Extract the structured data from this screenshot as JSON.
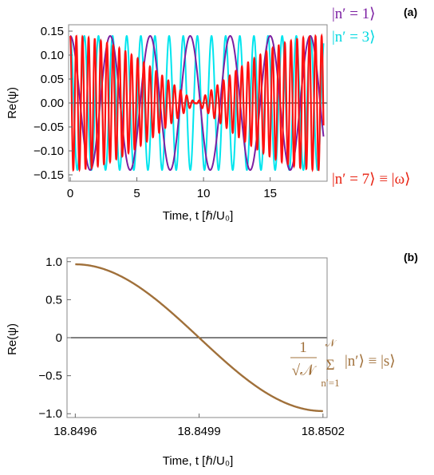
{
  "chart_data": [
    {
      "type": "line",
      "panel_label": "(a)",
      "xlabel": "Time, t [ℏ/U₀]",
      "ylabel": "Re(ψ)",
      "xlim": [
        0,
        19
      ],
      "ylim": [
        -0.15,
        0.15
      ],
      "x_ticks": [
        0,
        5,
        10,
        15
      ],
      "x_tick_labels": [
        "0",
        "5",
        "10",
        "15"
      ],
      "y_ticks": [
        0.15,
        0.1,
        0.05,
        0.0,
        -0.05,
        -0.1,
        -0.15
      ],
      "y_tick_labels": [
        "0.15",
        "0.10",
        "0.05",
        "0.00",
        "−0.05",
        "−0.10",
        "−0.15"
      ],
      "series": [
        {
          "name": "|n′ = 1⟩",
          "color": "#7b1fa2",
          "amplitude": 0.14,
          "period": 3.0,
          "decay": 0
        },
        {
          "name": "|n′ = 3⟩",
          "color": "#00e5ee",
          "amplitude": 0.14,
          "period": 1.06,
          "decay": 0
        },
        {
          "name": "|n′ = 7⟩ ≡ |ω⟩",
          "color": "#ff1010",
          "amplitude": 0.14,
          "period": 0.46,
          "envelope": "beat",
          "envelope_period": 18.85
        }
      ]
    },
    {
      "type": "line",
      "panel_label": "(b)",
      "xlabel": "Time, t [ℏ/U₀]",
      "ylabel": "Re(ψ)",
      "xlim": [
        18.84958,
        18.85021
      ],
      "ylim": [
        -1.05,
        1.05
      ],
      "x_ticks": [
        18.8496,
        18.8499,
        18.8502
      ],
      "x_tick_labels": [
        "18.8496",
        "18.8499",
        "18.8502"
      ],
      "y_ticks": [
        1.0,
        0.5,
        0,
        -0.5,
        -1.0
      ],
      "y_tick_labels": [
        "1.0",
        "0.5",
        "0",
        "−0.5",
        "−1.0"
      ],
      "series": [
        {
          "name": "1/√𝒩 Σ |n′⟩ ≡ |s⟩",
          "color": "#a0703a",
          "amplitude": 0.965,
          "center": 18.8499,
          "halfperiod": 0.0006
        }
      ]
    }
  ],
  "legend": {
    "a1": "|n′ = 1⟩",
    "a2": "|n′ = 3⟩",
    "a3": "|n′ = 7⟩ ≡ |ω⟩",
    "b_num": "1",
    "b_den": "√𝒩",
    "b_sum": "Σ",
    "b_sup": "𝒩",
    "b_sub": "n′=1",
    "b_ket": "|n′⟩ ≡ |s⟩"
  }
}
